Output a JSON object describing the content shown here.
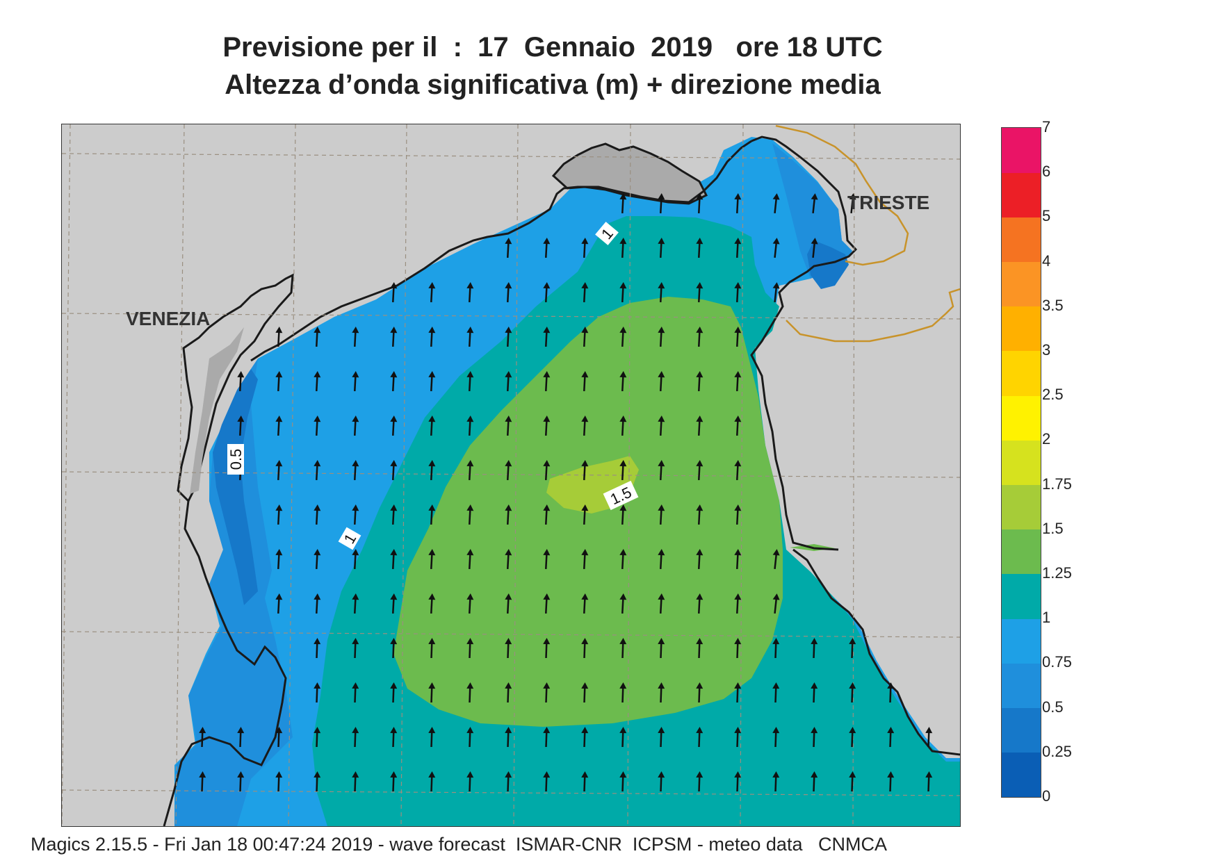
{
  "header": {
    "title_line1": "Previsione per il  :  17  Gennaio  2019   ore 18 UTC",
    "title_line2": "Altezza d’onda significativa (m) + direzione media"
  },
  "map": {
    "place_labels": [
      "VENEZIA",
      "TRIESTE"
    ],
    "contour_labels": [
      "0.5",
      "1",
      "1",
      "1.5"
    ],
    "colors": {
      "land": "#cccccc",
      "coastline": "#1a1a1a",
      "border": "#c8932a",
      "grid": "#9a8f80",
      "arrow": "#111111"
    }
  },
  "legend": {
    "levels": [
      "0",
      "0.25",
      "0.5",
      "0.75",
      "1",
      "1.25",
      "1.5",
      "1.75",
      "2",
      "2.5",
      "3",
      "3.5",
      "4",
      "5",
      "6",
      "7"
    ],
    "colors": [
      "#0a5eb5",
      "#1678c9",
      "#1f8fdc",
      "#1ea0e6",
      "#00aaa8",
      "#6cbb4e",
      "#a6cc38",
      "#d6e21e",
      "#fff200",
      "#ffd400",
      "#ffb000",
      "#fb9424",
      "#f57321",
      "#ec1f26",
      "#ea1466"
    ]
  },
  "footer": {
    "text": "Magics 2.15.5 - Fri Jan 18 00:47:24 2019 - wave forecast  ISMAR-CNR  ICPSM - meteo data   CNMCA"
  }
}
